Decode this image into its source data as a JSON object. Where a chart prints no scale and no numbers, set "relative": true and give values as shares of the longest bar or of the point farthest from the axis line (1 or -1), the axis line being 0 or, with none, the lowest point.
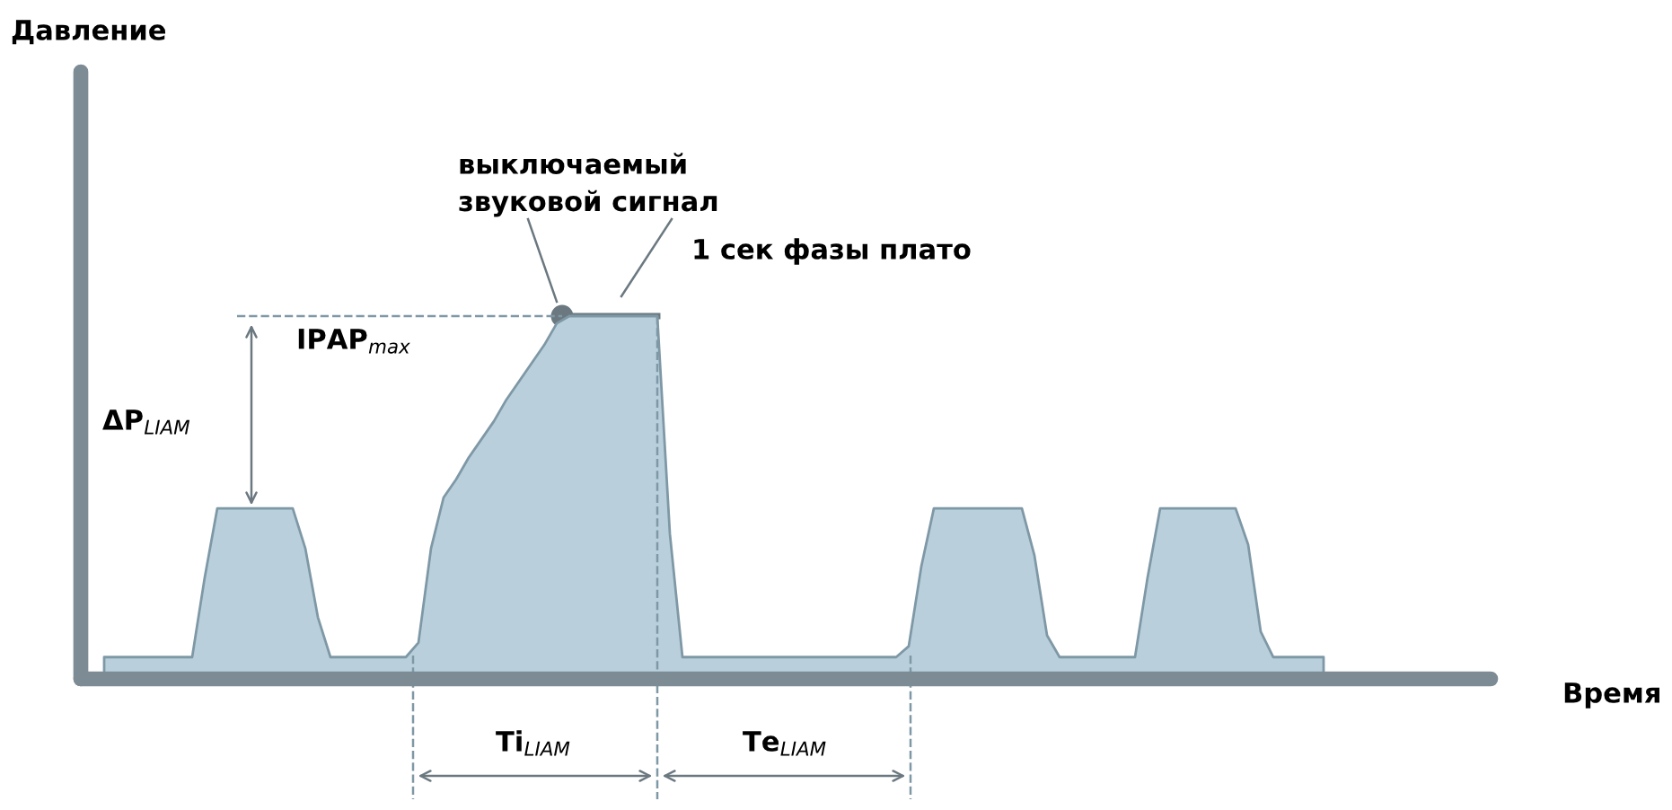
{
  "chart_data": {
    "type": "area",
    "relative": true,
    "color": "#b9d0dc",
    "categories": [
      null,
      null,
      null,
      null,
      null,
      null,
      null,
      null,
      null,
      null,
      null,
      null,
      null,
      null,
      null,
      null,
      null,
      null,
      null,
      null,
      null,
      null,
      null,
      null,
      null,
      null,
      null,
      null,
      null,
      null,
      null,
      null,
      null,
      null,
      null,
      null,
      null,
      null,
      null,
      null,
      null,
      null,
      null,
      null,
      null,
      null,
      null,
      null,
      null,
      null,
      null,
      null,
      null,
      null,
      null,
      null,
      null,
      null,
      null,
      null,
      null,
      null,
      null,
      null,
      null,
      null,
      null,
      null,
      null,
      null,
      null,
      null,
      null,
      null,
      null,
      null,
      null,
      null,
      null,
      null,
      null,
      null,
      null,
      null,
      null,
      null,
      null,
      null,
      null,
      null,
      null,
      null,
      null,
      null,
      null,
      null,
      null,
      null
    ],
    "values": [
      0.06,
      0.06,
      0.06,
      0.06,
      0.06,
      0.06,
      0.06,
      0.06,
      0.28,
      0.47,
      0.47,
      0.47,
      0.47,
      0.47,
      0.47,
      0.47,
      0.36,
      0.17,
      0.06,
      0.06,
      0.06,
      0.06,
      0.06,
      0.06,
      0.06,
      0.1,
      0.36,
      0.5,
      0.55,
      0.61,
      0.66,
      0.71,
      0.77,
      0.82,
      0.87,
      0.92,
      0.98,
      1,
      1,
      1,
      1,
      1,
      1,
      1,
      1,
      0.4,
      0.06,
      0.06,
      0.06,
      0.06,
      0.06,
      0.06,
      0.06,
      0.06,
      0.06,
      0.06,
      0.06,
      0.06,
      0.06,
      0.06,
      0.06,
      0.06,
      0.06,
      0.06,
      0.09,
      0.31,
      0.47,
      0.47,
      0.47,
      0.47,
      0.47,
      0.47,
      0.47,
      0.47,
      0.34,
      0.12,
      0.06,
      0.06,
      0.06,
      0.06,
      0.06,
      0.06,
      0.06,
      0.28,
      0.47,
      0.47,
      0.47,
      0.47,
      0.47,
      0.47,
      0.47,
      0.37,
      0.13,
      0.06,
      0.06,
      0.06,
      0.06,
      0.06
    ],
    "annotations": [
      "выключаемый\nзвуковой сигнал",
      "1 сек фазы плато",
      "IPAP$_{max}$",
      "ΔP$_{LIAM}$",
      "Ti$_{LIAM}$",
      "Te$_{LIAM}$",
      "Давление",
      "Время"
    ]
  }
}
